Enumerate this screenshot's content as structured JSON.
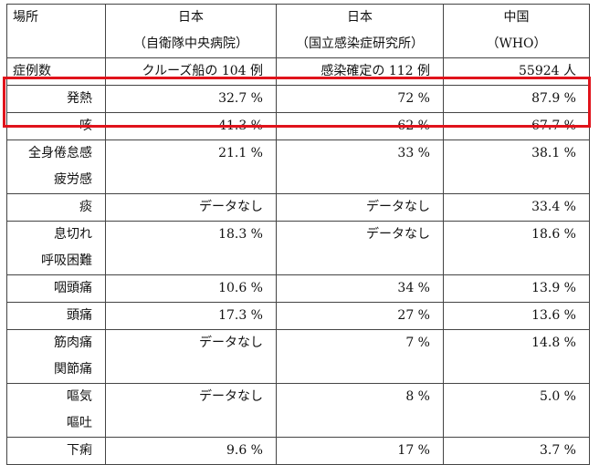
{
  "header": {
    "col1": "場所",
    "col2_line1": "日本",
    "col2_line2": "（自衛隊中央病院）",
    "col3_line1": "日本",
    "col3_line2": "（国立感染症研究所）",
    "col4_line1": "中国",
    "col4_line2": "（WHO）"
  },
  "cases_row": {
    "label": "症例数",
    "v1": "クルーズ船の 104 例",
    "v2": "感染確定の 112 例",
    "v3": "55924 人"
  },
  "rows": [
    {
      "label": [
        "発熱"
      ],
      "v1": "32.7 %",
      "v2": "72  %",
      "v3": "87.9  %"
    },
    {
      "label": [
        "咳"
      ],
      "v1": "41.3 %",
      "v2": "62  %",
      "v3": "67.7  %"
    },
    {
      "label": [
        "全身倦怠感",
        "疲労感"
      ],
      "v1": "21.1 %",
      "v2": "33  %",
      "v3": "38.1  %"
    },
    {
      "label": [
        "痰"
      ],
      "v1": "データなし",
      "v2": "データなし",
      "v3": "33.4  %"
    },
    {
      "label": [
        "息切れ",
        "呼吸困難"
      ],
      "v1": "18.3 %",
      "v2": "データなし",
      "v3": "18.6  %"
    },
    {
      "label": [
        "咽頭痛"
      ],
      "v1": "10.6  %",
      "v2": "34  %",
      "v3": "13.9  %"
    },
    {
      "label": [
        "頭痛"
      ],
      "v1": "17.3  %",
      "v2": "27  %",
      "v3": "13.6  %"
    },
    {
      "label": [
        "筋肉痛",
        "関節痛"
      ],
      "v1": "データなし",
      "v2": "7  %",
      "v3": "14.8  %"
    },
    {
      "label": [
        "嘔気",
        "嘔吐"
      ],
      "v1": "データなし",
      "v2": "8  %",
      "v3": "5.0  %"
    },
    {
      "label": [
        "下痢"
      ],
      "v1": "9.6  %",
      "v2": "17  %",
      "v3": "3.7  %"
    }
  ],
  "highlight_color": "#e0131b"
}
